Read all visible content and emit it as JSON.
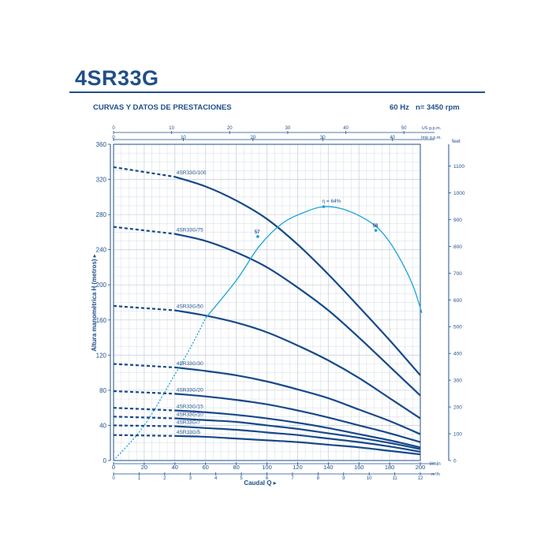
{
  "header": {
    "title": "4SR33G",
    "subtitle": "CURVAS Y DATOS DE PRESTACIONES",
    "frequency": "60 Hz",
    "speed": "n= 3450 rpm"
  },
  "colors": {
    "brand": "#1f4f8a",
    "pump_curve": "#17498a",
    "efficiency_curve": "#1aa3d9",
    "grid": "#c9d3de"
  },
  "chart_data": {
    "type": "line",
    "grid": true,
    "xlabel": "Caudal Q",
    "ylabel": "Altura manométrica H (metros)",
    "x_unit": "l/min",
    "xlim": [
      0,
      200
    ],
    "ylim": [
      0,
      360
    ],
    "x_ticks": [
      0,
      20,
      40,
      60,
      80,
      100,
      120,
      140,
      160,
      180,
      200
    ],
    "y_ticks": [
      0,
      40,
      80,
      120,
      160,
      200,
      240,
      280,
      320,
      360
    ],
    "secondary_axes": {
      "bottom_m3h": {
        "unit": "m³/h",
        "ticks": [
          0,
          1,
          2,
          3,
          4,
          5,
          6,
          7,
          8,
          9,
          10,
          11,
          12
        ]
      },
      "top_us_gpm": {
        "unit": "US g.p.m.",
        "ticks": [
          0,
          10,
          20,
          30,
          40,
          50
        ]
      },
      "top_imp_gpm": {
        "unit": "Imp g.p.m.",
        "ticks": [
          0,
          10,
          20,
          30,
          40
        ]
      },
      "right_feet": {
        "unit": "feet",
        "ticks": [
          0,
          100,
          200,
          300,
          400,
          500,
          600,
          700,
          800,
          900,
          1000,
          1100
        ]
      }
    },
    "series": [
      {
        "name": "4SR33G/100",
        "dashed_until_x": 40,
        "label_x": 40,
        "points": [
          [
            0,
            334
          ],
          [
            40,
            323
          ],
          [
            60,
            312
          ],
          [
            80,
            296
          ],
          [
            100,
            275
          ],
          [
            120,
            246
          ],
          [
            140,
            212
          ],
          [
            160,
            175
          ],
          [
            180,
            137
          ],
          [
            200,
            97
          ]
        ]
      },
      {
        "name": "4SR33G/75",
        "dashed_until_x": 40,
        "label_x": 40,
        "points": [
          [
            0,
            266
          ],
          [
            40,
            258
          ],
          [
            60,
            250
          ],
          [
            80,
            237
          ],
          [
            100,
            220
          ],
          [
            120,
            197
          ],
          [
            140,
            171
          ],
          [
            160,
            140
          ],
          [
            180,
            107
          ],
          [
            200,
            74
          ]
        ]
      },
      {
        "name": "4SR33G/50",
        "dashed_until_x": 40,
        "label_x": 40,
        "points": [
          [
            0,
            176
          ],
          [
            40,
            171
          ],
          [
            60,
            165
          ],
          [
            80,
            157
          ],
          [
            100,
            146
          ],
          [
            120,
            131
          ],
          [
            140,
            114
          ],
          [
            160,
            94
          ],
          [
            180,
            71
          ],
          [
            200,
            48
          ]
        ]
      },
      {
        "name": "4SR33G/30",
        "dashed_until_x": 40,
        "label_x": 40,
        "points": [
          [
            0,
            110
          ],
          [
            40,
            106
          ],
          [
            60,
            102
          ],
          [
            80,
            97
          ],
          [
            100,
            90
          ],
          [
            120,
            81
          ],
          [
            140,
            71
          ],
          [
            160,
            58
          ],
          [
            180,
            45
          ],
          [
            200,
            30
          ]
        ]
      },
      {
        "name": "4SR33G/20",
        "dashed_until_x": 40,
        "label_x": 40,
        "points": [
          [
            0,
            79
          ],
          [
            40,
            76
          ],
          [
            60,
            73
          ],
          [
            80,
            69
          ],
          [
            100,
            64
          ],
          [
            120,
            57
          ],
          [
            140,
            49
          ],
          [
            160,
            40
          ],
          [
            180,
            31
          ],
          [
            200,
            21
          ]
        ]
      },
      {
        "name": "4SR33G/15",
        "dashed_until_x": 40,
        "label_x": 40,
        "points": [
          [
            0,
            60
          ],
          [
            40,
            57
          ],
          [
            60,
            55
          ],
          [
            80,
            52
          ],
          [
            100,
            48
          ],
          [
            120,
            43
          ],
          [
            140,
            37
          ],
          [
            160,
            30
          ],
          [
            180,
            23
          ],
          [
            200,
            15
          ]
        ]
      },
      {
        "name": "4SR33G/10",
        "dashed_until_x": 40,
        "label_x": 40,
        "points": [
          [
            0,
            50
          ],
          [
            40,
            48
          ],
          [
            60,
            46
          ],
          [
            80,
            44
          ],
          [
            100,
            40
          ],
          [
            120,
            36
          ],
          [
            140,
            31
          ],
          [
            160,
            26
          ],
          [
            180,
            20
          ],
          [
            200,
            13
          ]
        ]
      },
      {
        "name": "4SR33G/7",
        "dashed_until_x": 40,
        "label_x": 40,
        "points": [
          [
            0,
            40
          ],
          [
            40,
            39
          ],
          [
            60,
            37
          ],
          [
            80,
            35
          ],
          [
            100,
            32
          ],
          [
            120,
            29
          ],
          [
            140,
            25
          ],
          [
            160,
            21
          ],
          [
            180,
            16
          ],
          [
            200,
            10
          ]
        ]
      },
      {
        "name": "4SR33G/5",
        "dashed_until_x": 40,
        "label_x": 40,
        "points": [
          [
            0,
            29
          ],
          [
            40,
            28
          ],
          [
            60,
            27
          ],
          [
            80,
            25
          ],
          [
            100,
            23
          ],
          [
            120,
            21
          ],
          [
            140,
            18
          ],
          [
            160,
            15
          ],
          [
            180,
            11
          ],
          [
            200,
            7
          ]
        ]
      }
    ],
    "efficiency": {
      "label": "η = 64%",
      "peak_label": "64%",
      "dashed_until_x": 60,
      "points": [
        [
          0,
          0
        ],
        [
          20,
          40
        ],
        [
          40,
          98
        ],
        [
          50,
          128
        ],
        [
          60,
          162
        ],
        [
          80,
          205
        ],
        [
          95,
          244
        ],
        [
          110,
          270
        ],
        [
          125,
          283
        ],
        [
          137,
          289
        ],
        [
          150,
          286
        ],
        [
          165,
          274
        ],
        [
          175,
          260
        ],
        [
          185,
          235
        ],
        [
          195,
          200
        ],
        [
          201,
          168
        ]
      ],
      "markers": [
        {
          "label": "57",
          "x": 94,
          "y": 255
        },
        {
          "label": "58",
          "x": 171,
          "y": 262
        },
        {
          "label": "",
          "x": 137,
          "y": 289
        }
      ]
    }
  }
}
